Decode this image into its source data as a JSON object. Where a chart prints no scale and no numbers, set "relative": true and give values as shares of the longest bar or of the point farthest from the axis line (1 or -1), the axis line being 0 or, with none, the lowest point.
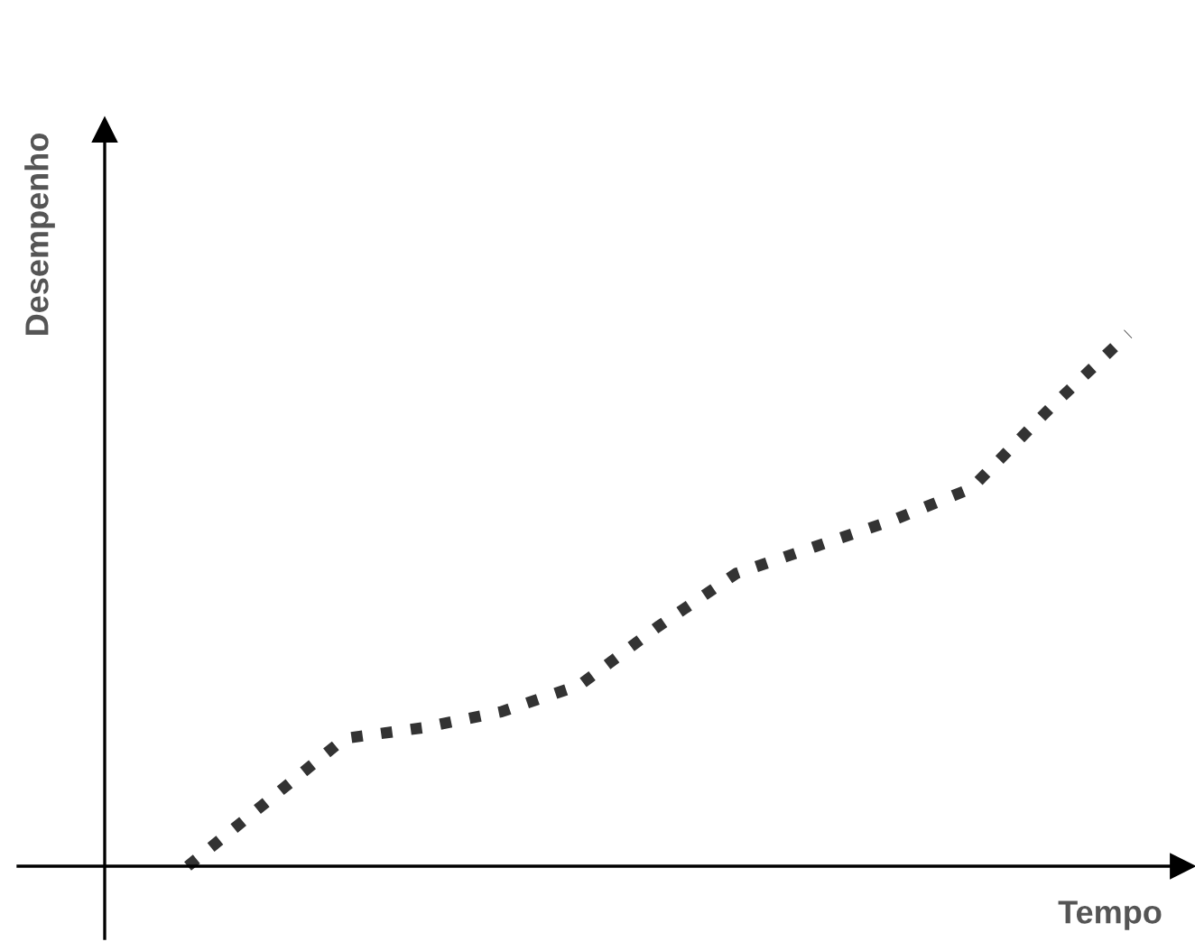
{
  "chart_data": {
    "type": "line",
    "relative": true,
    "xlabel": "Tempo",
    "ylabel": "Desempenho",
    "categories": [
      null,
      null,
      null,
      null,
      null,
      null,
      null,
      null,
      null,
      null,
      null,
      null,
      null
    ],
    "series": [
      {
        "color": "#333333",
        "values": [
          0,
          0.12,
          0.24,
          0.26,
          0.29,
          0.34,
          0.45,
          0.55,
          0.6,
          0.65,
          0.71,
          0.86,
          1.0
        ]
      }
    ],
    "line_style": "dotted",
    "marker": "none",
    "grid": false,
    "legend": false
  }
}
